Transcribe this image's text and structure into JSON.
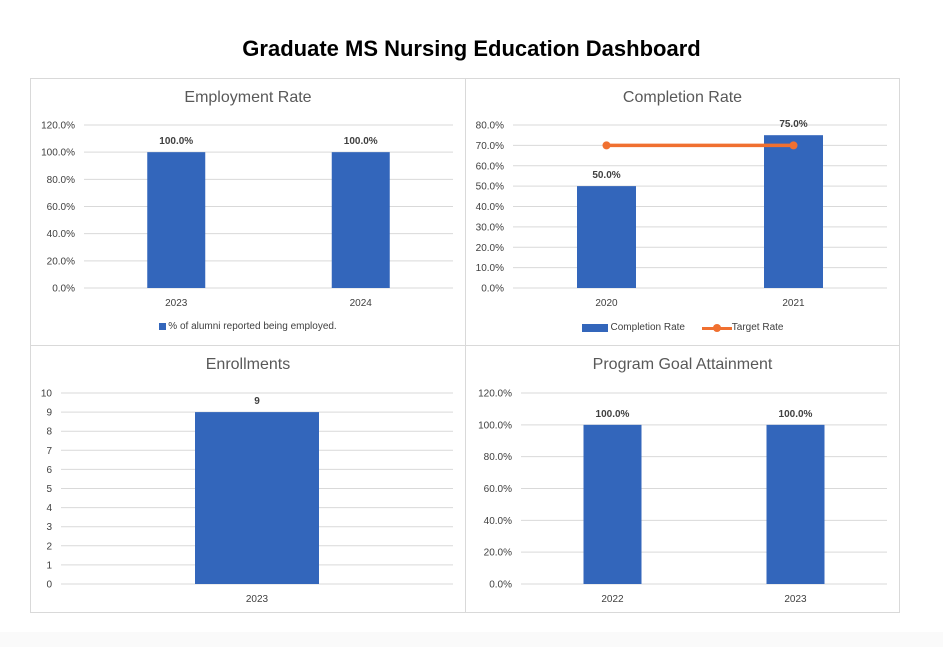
{
  "dashboard_title": "Graduate MS Nursing Education Dashboard",
  "colors": {
    "bar": "#3366bb",
    "line": "#f07030",
    "grid": "#d9d9d9"
  },
  "chart_data": [
    {
      "id": "employment",
      "type": "bar",
      "title": "Employment Rate",
      "categories": [
        "2023",
        "2024"
      ],
      "series": [
        {
          "name": "% of alumni reported being employed.",
          "values": [
            100.0,
            100.0
          ],
          "labels": [
            "100.0%",
            "100.0%"
          ]
        }
      ],
      "yticks": [
        "0.0%",
        "20.0%",
        "40.0%",
        "60.0%",
        "80.0%",
        "100.0%",
        "120.0%"
      ],
      "ylim": [
        0,
        120
      ],
      "grid": true,
      "legend": "bottom"
    },
    {
      "id": "completion",
      "type": "bar",
      "title": "Completion Rate",
      "categories": [
        "2020",
        "2021"
      ],
      "series": [
        {
          "name": "Completion Rate",
          "type": "bar",
          "values": [
            50.0,
            75.0
          ],
          "labels": [
            "50.0%",
            "75.0%"
          ]
        },
        {
          "name": "Target Rate",
          "type": "line",
          "values": [
            70.0,
            70.0
          ]
        }
      ],
      "yticks": [
        "0.0%",
        "10.0%",
        "20.0%",
        "30.0%",
        "40.0%",
        "50.0%",
        "60.0%",
        "70.0%",
        "80.0%"
      ],
      "ylim": [
        0,
        80
      ],
      "grid": true,
      "legend": "bottom"
    },
    {
      "id": "enrollments",
      "type": "bar",
      "title": "Enrollments",
      "categories": [
        "2023"
      ],
      "series": [
        {
          "name": "Enrollments",
          "values": [
            9
          ],
          "labels": [
            "9"
          ]
        }
      ],
      "yticks": [
        "0",
        "1",
        "2",
        "3",
        "4",
        "5",
        "6",
        "7",
        "8",
        "9",
        "10"
      ],
      "ylim": [
        0,
        10
      ],
      "grid": true,
      "legend": "none"
    },
    {
      "id": "goal",
      "type": "bar",
      "title": "Program Goal Attainment",
      "categories": [
        "2022",
        "2023"
      ],
      "series": [
        {
          "name": "Program Goal Attainment",
          "values": [
            100.0,
            100.0
          ],
          "labels": [
            "100.0%",
            "100.0%"
          ]
        }
      ],
      "yticks": [
        "0.0%",
        "20.0%",
        "40.0%",
        "60.0%",
        "80.0%",
        "100.0%",
        "120.0%"
      ],
      "ylim": [
        0,
        120
      ],
      "grid": true,
      "legend": "none"
    }
  ]
}
